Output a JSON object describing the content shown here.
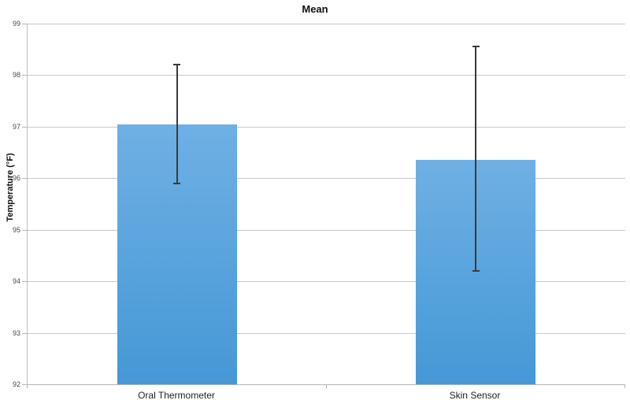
{
  "chart_data": {
    "type": "bar",
    "title": "Mean",
    "xlabel": "",
    "ylabel": "Temperature (°F)",
    "categories": [
      "Oral Thermometer",
      "Skin Sensor"
    ],
    "values": [
      97.05,
      96.35
    ],
    "error_low": [
      95.9,
      94.2
    ],
    "error_high": [
      98.2,
      98.55
    ],
    "ylim": [
      92,
      99
    ],
    "yticks": [
      92,
      93,
      94,
      95,
      96,
      97,
      98,
      99
    ],
    "grid": true,
    "legend": "none",
    "colors": {
      "bar_gradient_top": "#6FB0E4",
      "bar_gradient_bottom": "#4598D6",
      "gridline": "#C9C9C9",
      "axis": "#B5B5B5",
      "error_bar": "#3A3A3A",
      "tick_label": "#4A4A4A",
      "title_text": "#111111"
    }
  }
}
